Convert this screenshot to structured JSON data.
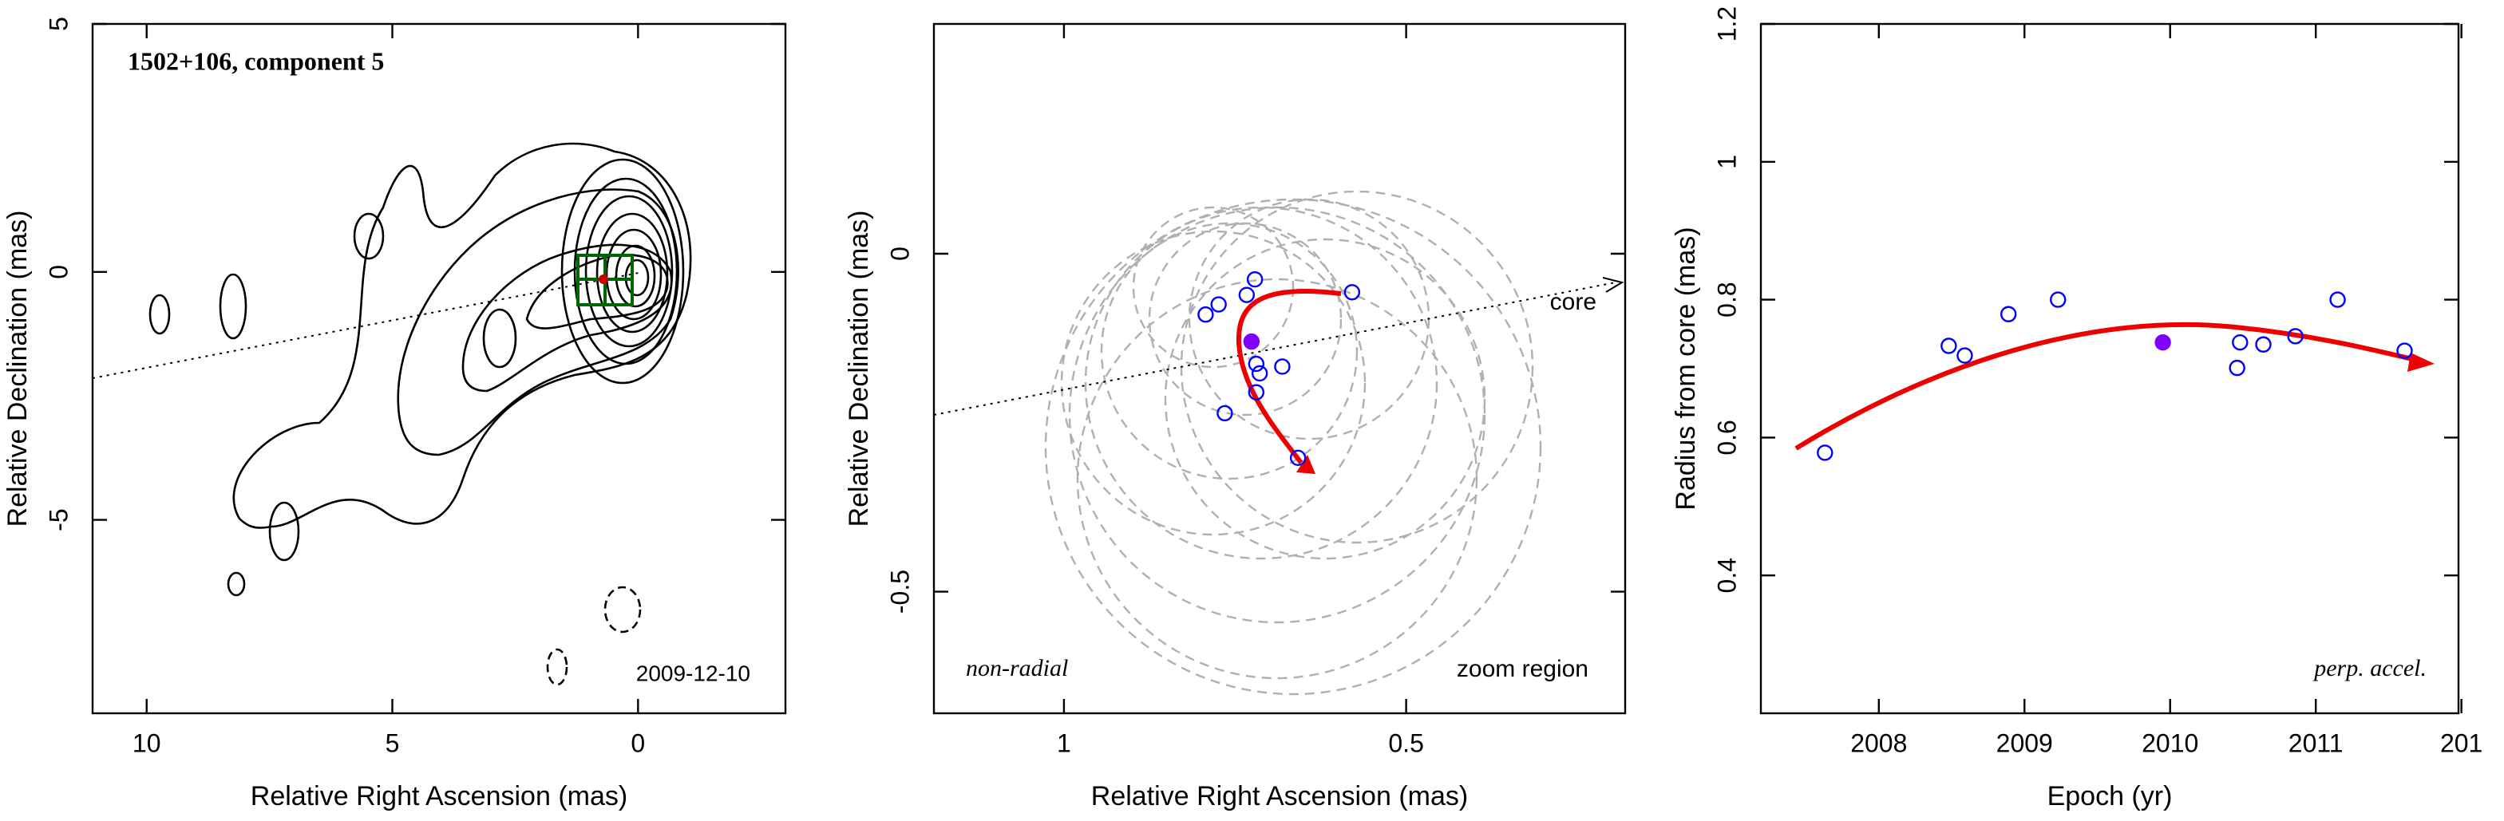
{
  "chart_data": [
    {
      "type": "contour",
      "title": "1502+106, component 5",
      "annotation": "2009-12-10",
      "xlabel": "Relative Right Ascension (mas)",
      "ylabel": "Relative Declination (mas)",
      "xlim": [
        11.1,
        -3.0
      ],
      "xticks": [
        10,
        5,
        0
      ],
      "ylim": [
        -8.9,
        5
      ],
      "yticks": [
        -5,
        0,
        5
      ]
    },
    {
      "type": "scatter",
      "annotations": [
        "non-radial",
        "zoom region",
        "core"
      ],
      "xlabel": "Relative Right Ascension (mas)",
      "ylabel": "Relative Declination (mas)",
      "xlim": [
        1.19,
        0.18
      ],
      "xticks": [
        1,
        0.5
      ],
      "ylim": [
        -0.68,
        0.34
      ],
      "yticks": [
        -0.5,
        0
      ],
      "series": [
        {
          "color": "#0000ff",
          "filled": false,
          "x": [
            0.793,
            0.774,
            0.733,
            0.721,
            0.579,
            0.719,
            0.714,
            0.681,
            0.719,
            0.765,
            0.658
          ],
          "y": [
            -0.09,
            -0.075,
            -0.061,
            -0.038,
            -0.057,
            -0.163,
            -0.177,
            -0.167,
            -0.205,
            -0.236,
            -0.302
          ]
        },
        {
          "color": "#7f00ff",
          "filled": true,
          "x": [
            0.726
          ],
          "y": [
            -0.13
          ]
        }
      ]
    },
    {
      "type": "scatter",
      "annotations": [
        "perp. accel."
      ],
      "xlabel": "Epoch (yr)",
      "ylabel": "Radius from core (mas)",
      "xlim": [
        2007.19,
        2011.98
      ],
      "xticks": [
        2008,
        2009,
        2010,
        2011,
        {
          "value": 2012,
          "label": "201"
        }
      ],
      "ylim": [
        0.2,
        1.2
      ],
      "yticks": [
        0.4,
        0.6,
        0.8,
        1,
        1.2
      ],
      "series": [
        {
          "color": "#0000ff",
          "filled": false,
          "x": [
            2007.63,
            2008.48,
            2008.59,
            2008.89,
            2009.23,
            2010.48,
            2010.46,
            2010.64,
            2010.86,
            2011.15,
            2011.61
          ],
          "y": [
            0.578,
            0.733,
            0.719,
            0.779,
            0.8,
            0.738,
            0.701,
            0.735,
            0.747,
            0.8,
            0.726
          ]
        },
        {
          "color": "#7f00ff",
          "filled": true,
          "x": [
            2009.95
          ],
          "y": [
            0.738
          ]
        }
      ]
    }
  ]
}
